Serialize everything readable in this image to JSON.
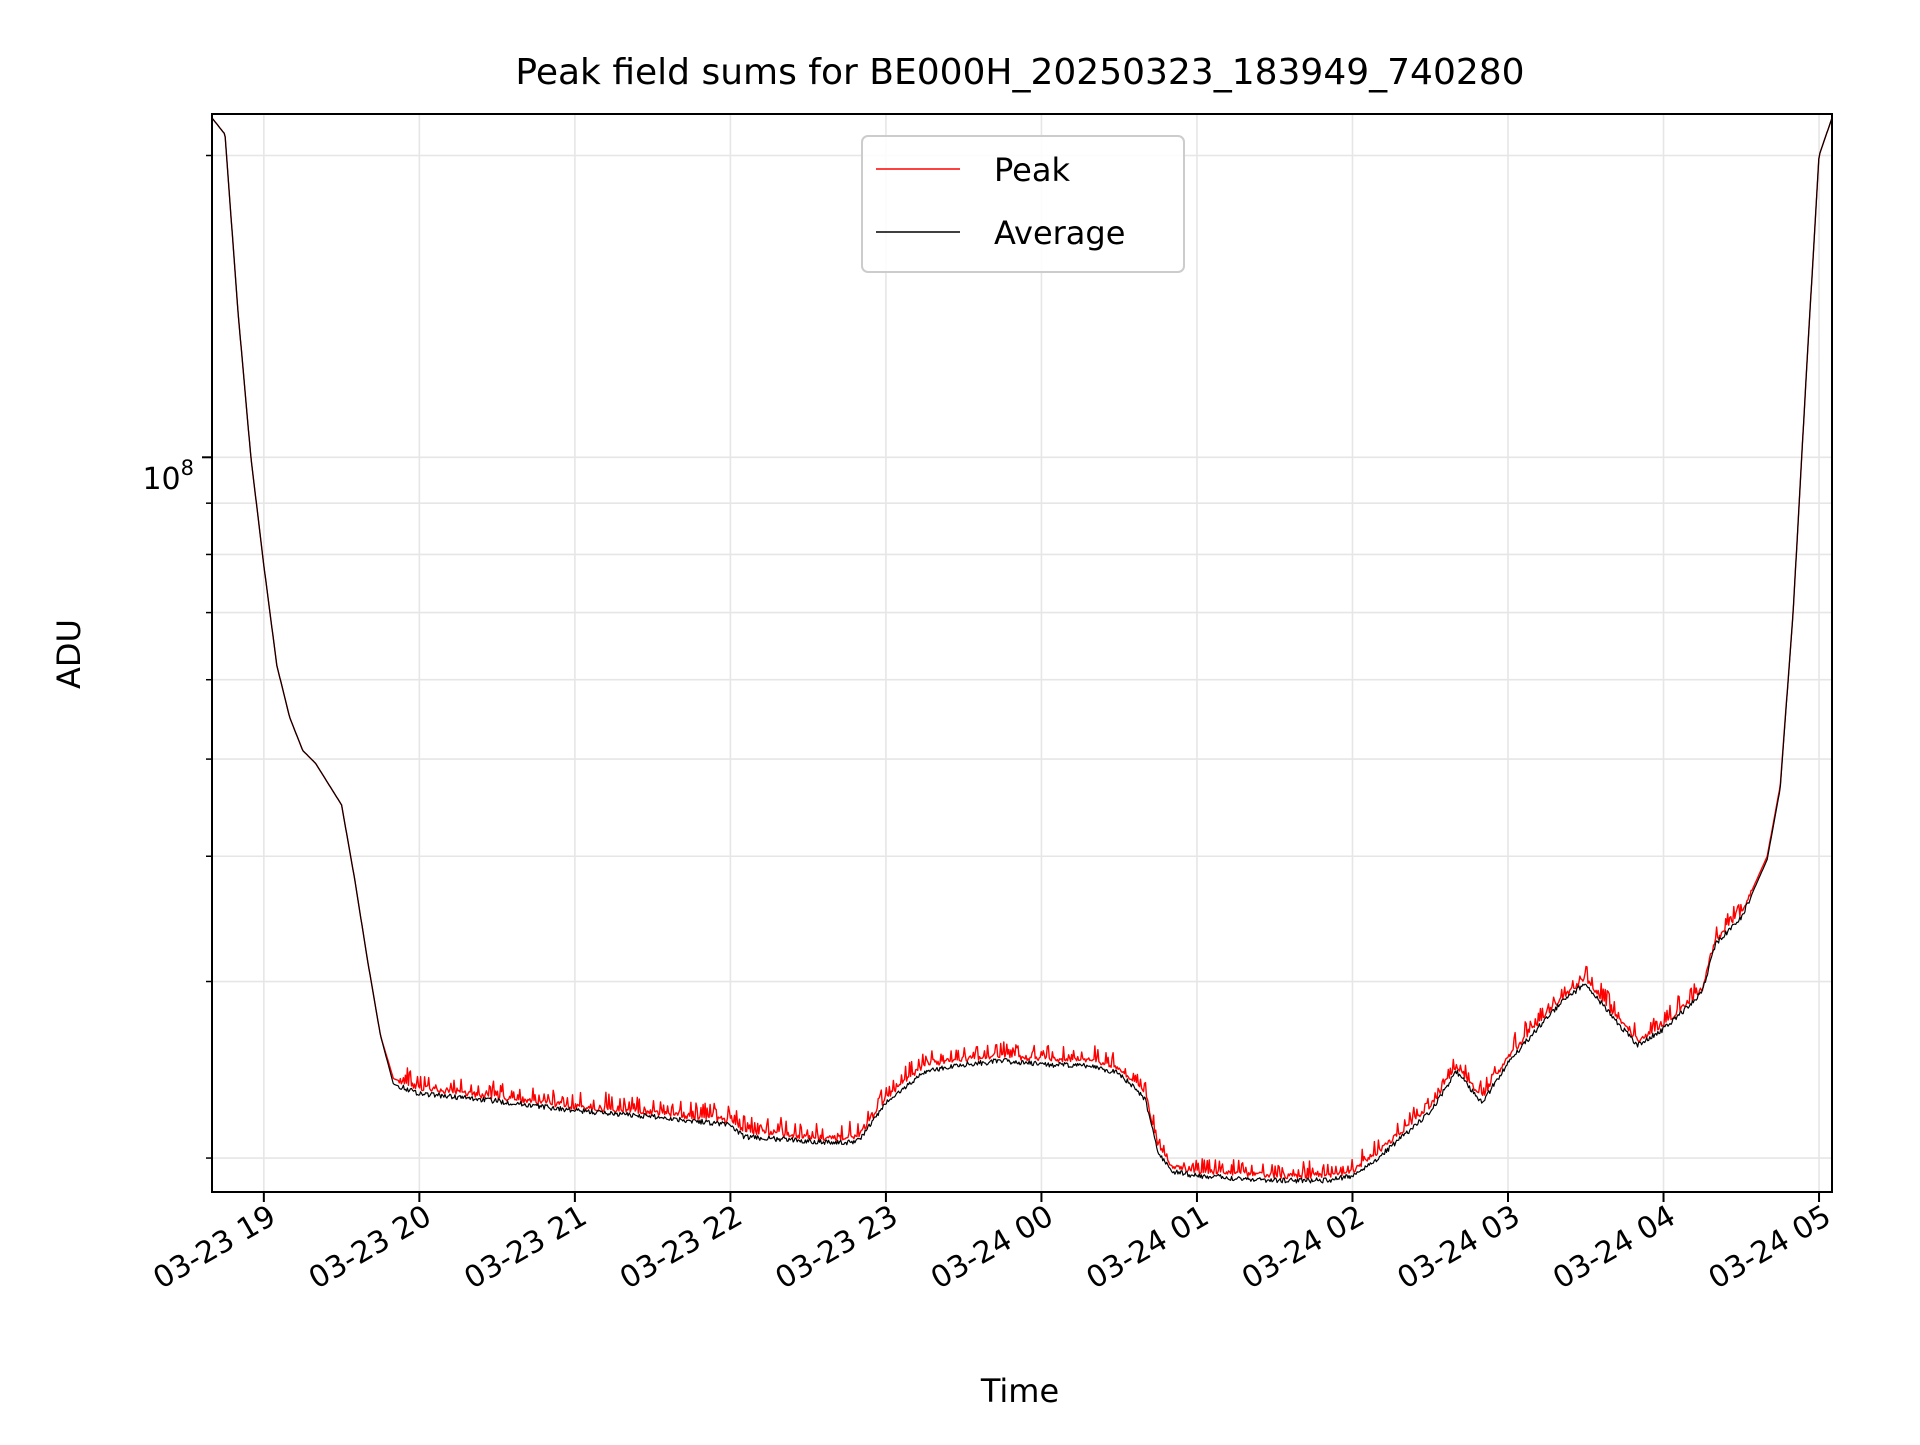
{
  "chart_data": {
    "type": "line",
    "title": "Peak field sums for BE000H_20250323_183949_740280",
    "xlabel": "Time",
    "ylabel": "ADU",
    "y_scale": "log",
    "ylim": [
      18500000,
      220000000
    ],
    "xlim": [
      "2025-03-23 18:40",
      "2025-03-24 05:05"
    ],
    "grid": true,
    "legend_position": "upper center",
    "x_tick_labels": [
      "03-23 19",
      "03-23 20",
      "03-23 21",
      "03-23 22",
      "03-23 23",
      "03-24 00",
      "03-24 01",
      "03-24 02",
      "03-24 03",
      "03-24 04",
      "03-24 05"
    ],
    "x_ticks": [
      "2025-03-23 19:00",
      "2025-03-23 20:00",
      "2025-03-23 21:00",
      "2025-03-23 22:00",
      "2025-03-23 23:00",
      "2025-03-24 00:00",
      "2025-03-24 01:00",
      "2025-03-24 02:00",
      "2025-03-24 03:00",
      "2025-03-24 04:00",
      "2025-03-24 05:00"
    ],
    "y_tick_label": {
      "base": "10",
      "exp": "8"
    },
    "y_tick_value": 100000000,
    "series": [
      {
        "name": "Peak",
        "color": "#ff0000",
        "x": [
          "2025-03-23 18:40",
          "2025-03-23 18:45",
          "2025-03-23 18:50",
          "2025-03-23 18:55",
          "2025-03-23 19:00",
          "2025-03-23 19:05",
          "2025-03-23 19:10",
          "2025-03-23 19:15",
          "2025-03-23 19:20",
          "2025-03-23 19:30",
          "2025-03-23 19:35",
          "2025-03-23 19:40",
          "2025-03-23 19:45",
          "2025-03-23 19:50",
          "2025-03-23 20:00",
          "2025-03-23 20:30",
          "2025-03-23 21:00",
          "2025-03-23 21:30",
          "2025-03-23 22:00",
          "2025-03-23 22:05",
          "2025-03-23 22:30",
          "2025-03-23 22:45",
          "2025-03-23 22:50",
          "2025-03-23 23:00",
          "2025-03-23 23:15",
          "2025-03-23 23:30",
          "2025-03-23 23:45",
          "2025-03-24 00:00",
          "2025-03-24 00:20",
          "2025-03-24 00:30",
          "2025-03-24 00:40",
          "2025-03-24 00:45",
          "2025-03-24 00:50",
          "2025-03-24 01:00",
          "2025-03-24 01:30",
          "2025-03-24 01:50",
          "2025-03-24 02:00",
          "2025-03-24 02:10",
          "2025-03-24 02:20",
          "2025-03-24 02:30",
          "2025-03-24 02:40",
          "2025-03-24 02:50",
          "2025-03-24 03:00",
          "2025-03-24 03:10",
          "2025-03-24 03:20",
          "2025-03-24 03:30",
          "2025-03-24 03:40",
          "2025-03-24 03:50",
          "2025-03-24 04:00",
          "2025-03-24 04:10",
          "2025-03-24 04:15",
          "2025-03-24 04:20",
          "2025-03-24 04:30",
          "2025-03-24 04:40",
          "2025-03-24 04:45",
          "2025-03-24 04:50",
          "2025-03-24 04:55",
          "2025-03-24 05:00",
          "2025-03-24 05:05"
        ],
        "y": [
          218000000,
          210000000,
          140000000,
          100000000,
          78000000,
          62000000,
          55000000,
          51000000,
          49500000,
          45000000,
          38000000,
          31500000,
          26500000,
          24000000,
          23500000,
          23000000,
          22500000,
          22200000,
          21800000,
          21300000,
          21000000,
          20900000,
          21100000,
          23000000,
          24800000,
          25100000,
          25300000,
          25100000,
          25000000,
          24600000,
          23200000,
          20600000,
          19600000,
          19400000,
          19200000,
          19200000,
          19400000,
          20300000,
          21400000,
          22500000,
          24700000,
          23000000,
          25200000,
          27000000,
          28800000,
          30200000,
          28000000,
          26200000,
          27200000,
          28700000,
          29500000,
          33000000,
          35000000,
          40000000,
          47000000,
          70000000,
          120000000,
          200000000,
          218000000
        ]
      },
      {
        "name": "Average",
        "color": "#000000",
        "x": [
          "2025-03-23 18:40",
          "2025-03-23 18:45",
          "2025-03-23 18:50",
          "2025-03-23 18:55",
          "2025-03-23 19:00",
          "2025-03-23 19:05",
          "2025-03-23 19:10",
          "2025-03-23 19:15",
          "2025-03-23 19:20",
          "2025-03-23 19:30",
          "2025-03-23 19:35",
          "2025-03-23 19:40",
          "2025-03-23 19:45",
          "2025-03-23 19:50",
          "2025-03-23 20:00",
          "2025-03-23 20:30",
          "2025-03-23 21:00",
          "2025-03-23 21:30",
          "2025-03-23 22:00",
          "2025-03-23 22:05",
          "2025-03-23 22:30",
          "2025-03-23 22:45",
          "2025-03-23 22:50",
          "2025-03-23 23:00",
          "2025-03-23 23:15",
          "2025-03-23 23:30",
          "2025-03-23 23:45",
          "2025-03-24 00:00",
          "2025-03-24 00:20",
          "2025-03-24 00:30",
          "2025-03-24 00:40",
          "2025-03-24 00:45",
          "2025-03-24 00:50",
          "2025-03-24 01:00",
          "2025-03-24 01:30",
          "2025-03-24 01:50",
          "2025-03-24 02:00",
          "2025-03-24 02:10",
          "2025-03-24 02:20",
          "2025-03-24 02:30",
          "2025-03-24 02:40",
          "2025-03-24 02:50",
          "2025-03-24 03:00",
          "2025-03-24 03:10",
          "2025-03-24 03:20",
          "2025-03-24 03:30",
          "2025-03-24 03:40",
          "2025-03-24 03:50",
          "2025-03-24 04:00",
          "2025-03-24 04:10",
          "2025-03-24 04:15",
          "2025-03-24 04:20",
          "2025-03-24 04:30",
          "2025-03-24 04:40",
          "2025-03-24 04:45",
          "2025-03-24 04:50",
          "2025-03-24 04:55",
          "2025-03-24 05:00",
          "2025-03-24 05:05"
        ],
        "y": [
          218000000,
          210000000,
          140000000,
          100000000,
          78000000,
          62000000,
          55000000,
          51000000,
          49500000,
          45000000,
          38000000,
          31500000,
          26500000,
          23700000,
          23200000,
          22800000,
          22300000,
          22000000,
          21600000,
          21000000,
          20800000,
          20700000,
          20900000,
          22700000,
          24400000,
          24800000,
          25000000,
          24800000,
          24700000,
          24300000,
          22900000,
          20300000,
          19400000,
          19200000,
          19000000,
          19000000,
          19200000,
          20000000,
          21100000,
          22200000,
          24400000,
          22700000,
          24900000,
          26700000,
          28500000,
          29900000,
          27700000,
          25900000,
          26900000,
          28400000,
          29300000,
          32700000,
          34700000,
          39700000,
          46700000,
          70000000,
          120000000,
          200000000,
          218000000
        ]
      }
    ]
  }
}
